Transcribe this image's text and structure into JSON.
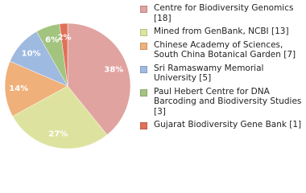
{
  "chart_data": {
    "type": "pie",
    "categories": [
      "Centre for Biodiversity Genomics [18]",
      "Mined from GenBank, NCBI [13]",
      "Chinese Academy of Sciences, South China Botanical Garden [7]",
      "Sri Ramaswamy Memorial University [5]",
      "Paul Hebert Centre for DNA Barcoding and Biodiversity Studies [3]",
      "Gujarat Biodiversity Gene Bank [1]"
    ],
    "values": [
      38,
      27,
      14,
      10,
      6,
      2
    ],
    "value_labels": [
      "38%",
      "27%",
      "14%",
      "10%",
      "6%",
      "2%"
    ],
    "colors": [
      "#e0a39f",
      "#dde39e",
      "#f0b07a",
      "#9fbae0",
      "#a3c47e",
      "#e0705a"
    ],
    "legend": "right"
  }
}
